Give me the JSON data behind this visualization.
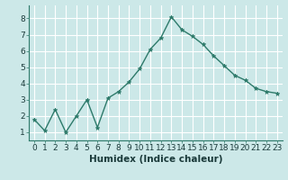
{
  "x": [
    0,
    1,
    2,
    3,
    4,
    5,
    6,
    7,
    8,
    9,
    10,
    11,
    12,
    13,
    14,
    15,
    16,
    17,
    18,
    19,
    20,
    21,
    22,
    23
  ],
  "y": [
    1.8,
    1.1,
    2.4,
    1.0,
    2.0,
    3.0,
    1.3,
    3.1,
    3.5,
    4.1,
    4.9,
    6.1,
    6.8,
    8.1,
    7.3,
    6.9,
    6.4,
    5.7,
    5.1,
    4.5,
    4.2,
    3.7,
    3.5,
    3.4
  ],
  "xlabel": "Humidex (Indice chaleur)",
  "ylabel": "",
  "title": "",
  "bg_color": "#cce8e8",
  "grid_color": "#ffffff",
  "line_color": "#2d7a6a",
  "marker_color": "#2d7a6a",
  "xlim": [
    -0.5,
    23.5
  ],
  "ylim": [
    0.5,
    8.8
  ],
  "yticks": [
    1,
    2,
    3,
    4,
    5,
    6,
    7,
    8
  ],
  "xticks": [
    0,
    1,
    2,
    3,
    4,
    5,
    6,
    7,
    8,
    9,
    10,
    11,
    12,
    13,
    14,
    15,
    16,
    17,
    18,
    19,
    20,
    21,
    22,
    23
  ],
  "xtick_labels": [
    "0",
    "1",
    "2",
    "3",
    "4",
    "5",
    "6",
    "7",
    "8",
    "9",
    "10",
    "11",
    "12",
    "13",
    "14",
    "15",
    "16",
    "17",
    "18",
    "19",
    "20",
    "21",
    "22",
    "23"
  ],
  "xlabel_fontsize": 7.5,
  "tick_fontsize": 6.5,
  "linewidth": 1.0,
  "markersize": 3.5
}
